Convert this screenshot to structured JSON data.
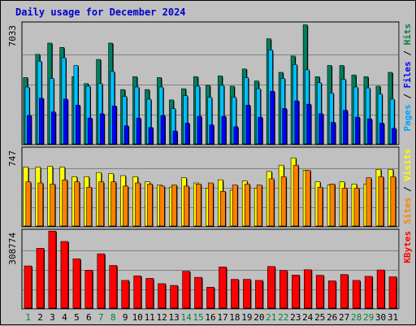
{
  "chart_data": [
    {
      "type": "bar",
      "title": "Daily usage for December 2024",
      "panel": "hits-files-pages",
      "ymax_label": "7033",
      "ylim": [
        0,
        7033
      ],
      "right_label_parts": [
        {
          "text": "Pages",
          "color": "#00a0ff"
        },
        {
          "text": " / ",
          "color": "#000000"
        },
        {
          "text": "Files",
          "color": "#0000ff"
        },
        {
          "text": " / ",
          "color": "#000000"
        },
        {
          "text": "Hits",
          "color": "#008040"
        }
      ],
      "categories": [
        "1",
        "2",
        "3",
        "4",
        "5",
        "6",
        "7",
        "8",
        "9",
        "10",
        "11",
        "12",
        "13",
        "14",
        "15",
        "16",
        "17",
        "18",
        "19",
        "20",
        "21",
        "22",
        "23",
        "24",
        "25",
        "26",
        "27",
        "28",
        "29",
        "30",
        "31"
      ],
      "weekend_days": [
        "1",
        "7",
        "8",
        "14",
        "15",
        "21",
        "22",
        "28",
        "29"
      ],
      "series": [
        {
          "name": "Hits",
          "color": "#008060",
          "values": [
            3900,
            5250,
            5900,
            5650,
            3950,
            3550,
            4950,
            5900,
            3200,
            3950,
            3200,
            3900,
            2600,
            3250,
            3950,
            3450,
            4000,
            3400,
            4400,
            3700,
            6150,
            4200,
            5150,
            6960,
            3950,
            4600,
            4600,
            4050,
            3950,
            3400,
            4200
          ]
        },
        {
          "name": "Files",
          "color": "#00c0ff",
          "values": [
            3350,
            4850,
            3850,
            5050,
            4600,
            3400,
            3550,
            4250,
            2800,
            3350,
            2650,
            3350,
            2100,
            2850,
            3400,
            2750,
            3450,
            2750,
            3900,
            3250,
            5500,
            3850,
            4650,
            4350,
            3600,
            3000,
            3800,
            3350,
            3300,
            2950,
            2650
          ]
        },
        {
          "name": "Pages",
          "color": "#0000ff",
          "values": [
            1700,
            2700,
            1900,
            2650,
            2300,
            1550,
            1800,
            2250,
            1100,
            1550,
            1000,
            1700,
            800,
            1250,
            1650,
            1150,
            1650,
            1050,
            2300,
            1600,
            3100,
            2100,
            2550,
            2350,
            1800,
            1300,
            2000,
            1600,
            1500,
            1250,
            950
          ]
        }
      ]
    },
    {
      "type": "bar",
      "panel": "visits-sites",
      "ymax_label": "747",
      "ylim": [
        0,
        747
      ],
      "right_label_parts": [
        {
          "text": "Sites",
          "color": "#ff8000"
        },
        {
          "text": " / ",
          "color": "#000000"
        },
        {
          "text": "Visits",
          "color": "#ffff00"
        }
      ],
      "series": [
        {
          "name": "Visits",
          "color": "#ffff00",
          "values": [
            570,
            570,
            580,
            570,
            480,
            480,
            520,
            510,
            490,
            480,
            430,
            400,
            380,
            470,
            420,
            370,
            450,
            350,
            440,
            370,
            530,
            590,
            660,
            540,
            430,
            400,
            430,
            410,
            410,
            550,
            550
          ]
        },
        {
          "name": "Sites",
          "color": "#ff8000",
          "values": [
            430,
            420,
            410,
            450,
            430,
            380,
            430,
            430,
            390,
            420,
            410,
            390,
            400,
            390,
            410,
            420,
            340,
            400,
            410,
            400,
            460,
            480,
            590,
            540,
            380,
            410,
            370,
            370,
            470,
            480,
            480
          ]
        }
      ]
    },
    {
      "type": "bar",
      "panel": "kbytes",
      "ymax_label": "308774",
      "ylim": [
        0,
        308774
      ],
      "right_label_parts": [
        {
          "text": "KBytes",
          "color": "#ff0000"
        }
      ],
      "series": [
        {
          "name": "KBytes",
          "color": "#ff0000",
          "values": [
            170000,
            240000,
            308000,
            267000,
            198000,
            153000,
            218000,
            172000,
            113000,
            131000,
            121000,
            100000,
            93000,
            149000,
            125000,
            86000,
            166000,
            117000,
            117000,
            113000,
            168000,
            152000,
            134000,
            155000,
            133000,
            111000,
            136000,
            113000,
            129000,
            154000,
            127000
          ]
        }
      ]
    }
  ]
}
